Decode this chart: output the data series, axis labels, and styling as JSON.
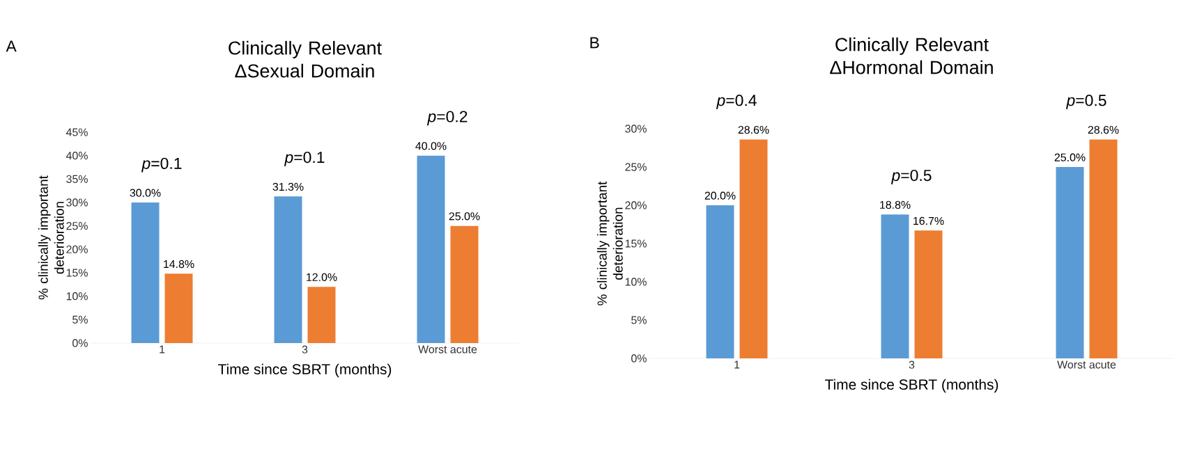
{
  "chart_data": [
    {
      "type": "bar",
      "title": "Clinically Relevant ΔSexual Domain",
      "xlabel": "Time since SBRT (months)",
      "ylabel": "% clinically important deterioration",
      "categories": [
        "1",
        "3",
        "Worst acute"
      ],
      "series": [
        {
          "color": "#5b9bd5",
          "values": [
            30.0,
            31.3,
            40.0
          ],
          "value_labels": [
            "30.0%",
            "31.3%",
            "40.0%"
          ]
        },
        {
          "color": "#ed7d31",
          "values": [
            14.8,
            12.0,
            25.0
          ],
          "value_labels": [
            "14.8%",
            "12.0%",
            "25.0%"
          ]
        }
      ],
      "ylim": [
        0,
        45
      ],
      "yticks": [
        {
          "value": 0,
          "label": "0%"
        },
        {
          "value": 5,
          "label": "5%"
        },
        {
          "value": 10,
          "label": "10%"
        },
        {
          "value": 15,
          "label": "15%"
        },
        {
          "value": 20,
          "label": "20%"
        },
        {
          "value": 25,
          "label": "25%"
        },
        {
          "value": 30,
          "label": "30%"
        },
        {
          "value": 35,
          "label": "35%"
        },
        {
          "value": 40,
          "label": "40%"
        },
        {
          "value": 45,
          "label": "45%"
        }
      ],
      "annotations": [
        "A",
        {
          "text": "*p*=0.1",
          "x": "1",
          "y": 30.0
        },
        {
          "text": "*p*=0.1",
          "x": "3",
          "y": 31.3
        },
        {
          "text": "*p*=0.2",
          "x": "Worst acute",
          "y": 40.0
        }
      ]
    },
    {
      "type": "bar",
      "title": "Clinically Relevant ΔHormonal Domain",
      "xlabel": "Time since SBRT (months)",
      "ylabel": "% clinically important deterioration",
      "categories": [
        "1",
        "3",
        "Worst acute"
      ],
      "series": [
        {
          "color": "#5b9bd5",
          "values": [
            20.0,
            18.8,
            25.0
          ],
          "value_labels": [
            "20.0%",
            "18.8%",
            "25.0%"
          ]
        },
        {
          "color": "#ed7d31",
          "values": [
            28.6,
            16.7,
            28.6
          ],
          "value_labels": [
            "28.6%",
            "16.7%",
            "28.6%"
          ]
        }
      ],
      "ylim": [
        0,
        30
      ],
      "yticks": [
        {
          "value": 0,
          "label": "0%"
        },
        {
          "value": 5,
          "label": "5%"
        },
        {
          "value": 10,
          "label": "10%"
        },
        {
          "value": 15,
          "label": "15%"
        },
        {
          "value": 20,
          "label": "20%"
        },
        {
          "value": 25,
          "label": "25%"
        },
        {
          "value": 30,
          "label": "30%"
        }
      ],
      "annotations": [
        "B",
        {
          "text": "*p*=0.4",
          "x": "1",
          "y": 28.6
        },
        {
          "text": "*p*=0.5",
          "x": "3",
          "y": 18.8
        },
        {
          "text": "*p*=0.5",
          "x": "Worst acute",
          "y": 28.6
        }
      ]
    }
  ]
}
